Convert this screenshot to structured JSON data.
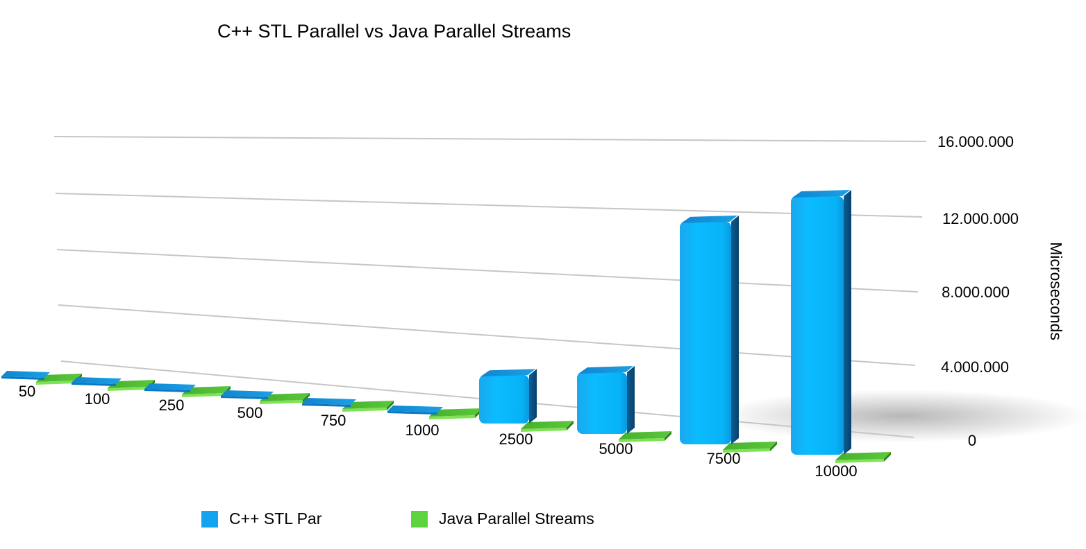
{
  "chart_data": {
    "type": "bar",
    "title": "C++ STL Parallel vs Java Parallel Streams",
    "ylabel": "Microseconds",
    "xlabel": "",
    "ylim": [
      0,
      16000000
    ],
    "yticks": [
      "0",
      "4.000.000",
      "8.000.000",
      "12.000.000",
      "16.000.000"
    ],
    "ytick_values": [
      0,
      4000000,
      8000000,
      12000000,
      16000000
    ],
    "categories": [
      "50",
      "100",
      "250",
      "500",
      "750",
      "1000",
      "2500",
      "5000",
      "7500",
      "10000"
    ],
    "series": [
      {
        "name": "C++ STL Par",
        "color": "#12a4f0",
        "values": [
          0,
          0,
          0,
          0,
          0,
          0,
          2600000,
          3400000,
          13300000,
          15000000
        ]
      },
      {
        "name": "Java Parallel Streams",
        "color": "#5ed340",
        "values": [
          0,
          0,
          0,
          0,
          0,
          0,
          0,
          0,
          0,
          0
        ]
      }
    ],
    "grid": true,
    "legend_position": "bottom",
    "three_d": true
  }
}
